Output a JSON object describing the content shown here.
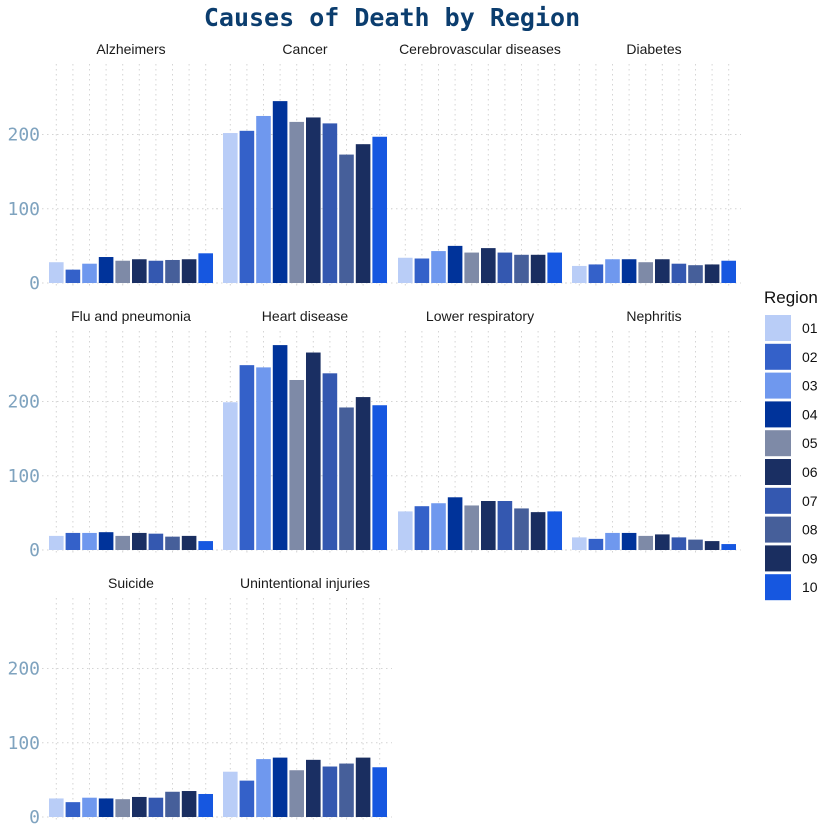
{
  "chart_data": {
    "type": "bar",
    "title": "Causes of Death by Region",
    "xlabel": "",
    "ylabel": "",
    "ylim": [
      0,
      295
    ],
    "yticks": [
      0,
      100,
      200
    ],
    "grid": true,
    "legend_title": "Region",
    "legend_position": "right",
    "categories": [
      "01",
      "02",
      "03",
      "04",
      "05",
      "06",
      "07",
      "08",
      "09",
      "10"
    ],
    "colors": [
      "#b9cdf7",
      "#3461c9",
      "#6f98ee",
      "#00339a",
      "#7e8aa7",
      "#1a2f63",
      "#3458b0",
      "#465f9a",
      "#1a2e60",
      "#1657e0"
    ],
    "panels": [
      {
        "name": "Alzheimers",
        "values": [
          28,
          18,
          26,
          35,
          30,
          32,
          30,
          31,
          32,
          40
        ]
      },
      {
        "name": "Cancer",
        "values": [
          202,
          205,
          225,
          245,
          217,
          223,
          215,
          173,
          187,
          197
        ]
      },
      {
        "name": "Cerebrovascular diseases",
        "values": [
          34,
          33,
          43,
          50,
          41,
          47,
          41,
          38,
          38,
          41
        ]
      },
      {
        "name": "Diabetes",
        "values": [
          23,
          25,
          32,
          32,
          28,
          32,
          26,
          24,
          25,
          30
        ]
      },
      {
        "name": "Flu and pneumonia",
        "values": [
          19,
          23,
          23,
          24,
          19,
          23,
          22,
          18,
          19,
          12
        ]
      },
      {
        "name": "Heart disease",
        "values": [
          199,
          249,
          246,
          276,
          229,
          266,
          238,
          192,
          206,
          195
        ]
      },
      {
        "name": "Lower respiratory",
        "values": [
          52,
          59,
          63,
          71,
          60,
          66,
          66,
          56,
          51,
          52
        ]
      },
      {
        "name": "Nephritis",
        "values": [
          17,
          15,
          23,
          23,
          19,
          21,
          17,
          14,
          12,
          8
        ]
      },
      {
        "name": "Suicide",
        "values": [
          25,
          20,
          26,
          25,
          24,
          27,
          26,
          34,
          35,
          31
        ]
      },
      {
        "name": "Unintentional injuries",
        "values": [
          61,
          49,
          78,
          80,
          63,
          77,
          68,
          72,
          80,
          67
        ]
      }
    ]
  }
}
